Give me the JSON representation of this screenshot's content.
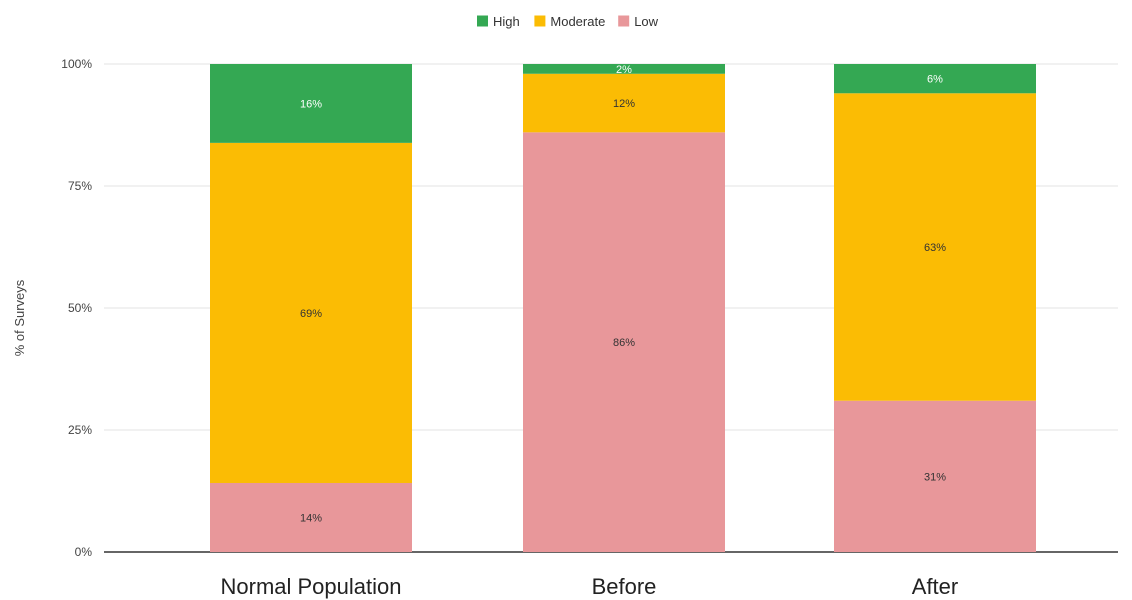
{
  "chart_data": {
    "type": "bar",
    "stacked": true,
    "normalized": true,
    "title": "",
    "xlabel": "",
    "ylabel": "% of Surveys",
    "ylim": [
      0,
      100
    ],
    "yticks": [
      0,
      25,
      50,
      75,
      100
    ],
    "ytick_labels": [
      "0%",
      "25%",
      "50%",
      "75%",
      "100%"
    ],
    "grid": true,
    "legend_position": "top-center",
    "categories": [
      "Normal Population",
      "Before",
      "After"
    ],
    "series": [
      {
        "name": "Low",
        "color": "#e8979a",
        "values": [
          14,
          86,
          31
        ],
        "labels": [
          "14%",
          "86%",
          "31%"
        ],
        "label_color": "#333333"
      },
      {
        "name": "Moderate",
        "color": "#fbbc04",
        "values": [
          69,
          12,
          63
        ],
        "labels": [
          "69%",
          "12%",
          "63%"
        ],
        "label_color": "#333333"
      },
      {
        "name": "High",
        "color": "#34a853",
        "values": [
          16,
          2,
          6
        ],
        "labels": [
          "16%",
          "2%",
          "6%"
        ],
        "label_color": "#ffffff"
      }
    ],
    "legend_order": [
      "High",
      "Moderate",
      "Low"
    ]
  }
}
